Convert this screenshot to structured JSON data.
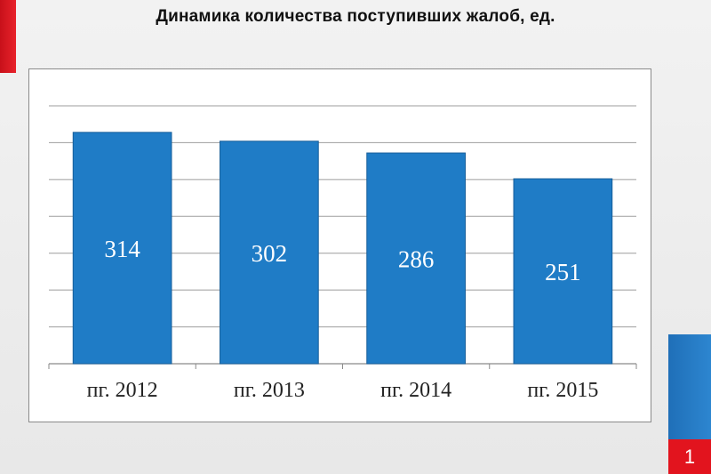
{
  "title": "Динамика количества поступивших жалоб, ед.",
  "slide_number": "1",
  "colors": {
    "bar": "#1f7cc6",
    "bar_border": "#175e9a",
    "grid": "#9e9e9e",
    "accent_red": "#e2141e",
    "accent_blue": "#2479c2"
  },
  "chart_data": {
    "type": "bar",
    "title": "Динамика количества поступивших жалоб, ед.",
    "categories": [
      "пг. 2012",
      "пг. 2013",
      "пг. 2014",
      "пг. 2015"
    ],
    "values": [
      314,
      302,
      286,
      251
    ],
    "xlabel": "",
    "ylabel": "",
    "ylim": [
      0,
      350
    ],
    "y_tick_step": 50,
    "y_tick_labels_shown": false,
    "grid": true,
    "legend": "none",
    "data_labels": "inside-center"
  }
}
